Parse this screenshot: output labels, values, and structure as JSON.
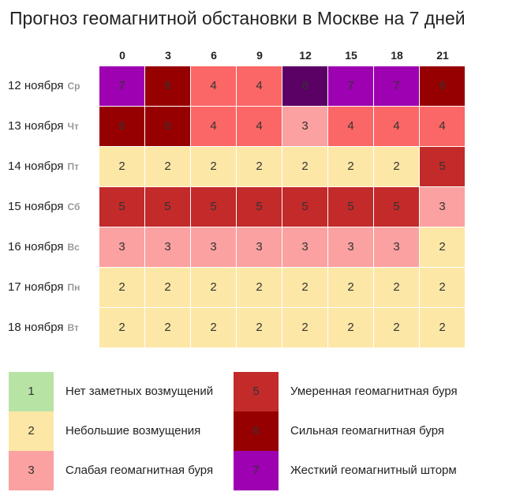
{
  "title": "Прогноз геомагнитной обстановки в Москве на 7 дней",
  "chart_data": {
    "type": "heatmap",
    "title": "Прогноз геомагнитной обстановки в Москве на 7 дней",
    "hours": [
      "0",
      "3",
      "6",
      "9",
      "12",
      "15",
      "18",
      "21"
    ],
    "rows": [
      {
        "date": "12 ноября",
        "dow": "Ср",
        "values": [
          7,
          6,
          4,
          4,
          8,
          7,
          7,
          6
        ]
      },
      {
        "date": "13 ноября",
        "dow": "Чт",
        "values": [
          6,
          6,
          4,
          4,
          3,
          4,
          4,
          4
        ]
      },
      {
        "date": "14 ноября",
        "dow": "Пт",
        "values": [
          2,
          2,
          2,
          2,
          2,
          2,
          2,
          5
        ]
      },
      {
        "date": "15 ноября",
        "dow": "Сб",
        "values": [
          5,
          5,
          5,
          5,
          5,
          5,
          5,
          3
        ]
      },
      {
        "date": "16 ноября",
        "dow": "Вс",
        "values": [
          3,
          3,
          3,
          3,
          3,
          3,
          3,
          2
        ]
      },
      {
        "date": "17 ноября",
        "dow": "Пн",
        "values": [
          2,
          2,
          2,
          2,
          2,
          2,
          2,
          2
        ]
      },
      {
        "date": "18 ноября",
        "dow": "Вт",
        "values": [
          2,
          2,
          2,
          2,
          2,
          2,
          2,
          2
        ]
      }
    ],
    "colors": {
      "1": "#b7e4a5",
      "2": "#fde7a6",
      "3": "#fba1a1",
      "4": "#fb6666",
      "5": "#c32a2a",
      "6": "#970000",
      "7": "#9d01b1",
      "8": "#5b0064"
    },
    "legend": [
      {
        "value": "1",
        "label": "Нет заметных возмущений"
      },
      {
        "value": "2",
        "label": "Небольшие возмущения"
      },
      {
        "value": "3",
        "label": "Слабая геомагнитная буря"
      },
      {
        "value": "5",
        "label": "Умеренная геомагнитная буря"
      },
      {
        "value": "6",
        "label": "Сильная геомагнитная буря"
      },
      {
        "value": "7",
        "label": "Жесткий геомагнитный шторм"
      }
    ]
  }
}
